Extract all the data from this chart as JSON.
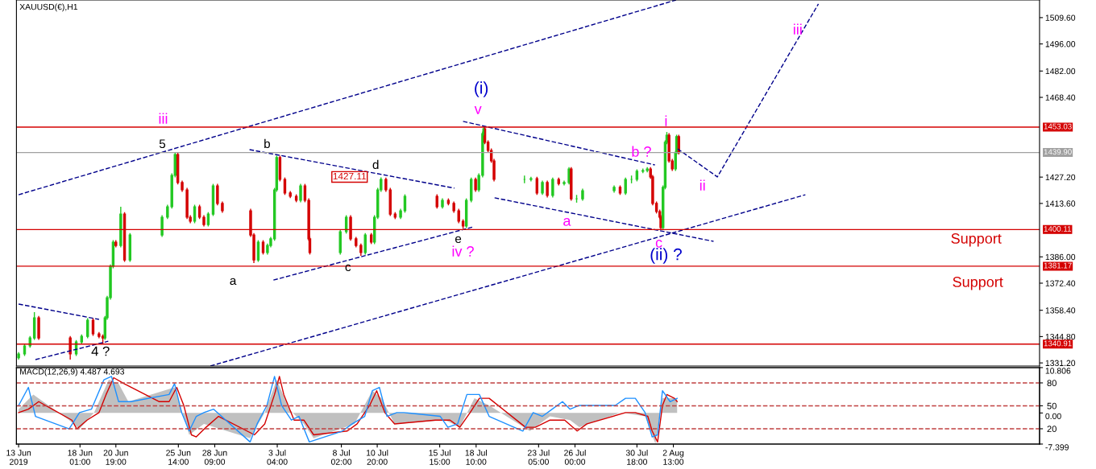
{
  "chart_data": [
    {
      "type": "candlestick",
      "title": "XAUUSD(€),H1",
      "tick_labels": "y",
      "xlim": [
        "2019-06-13T04:00",
        "2019-08-30T15:00"
      ],
      "ylim": [
        1329.6,
        1518.7
      ],
      "yticks": [
        {
          "value": 1331.2,
          "label": "1331.20"
        },
        {
          "value": 1344.8,
          "label": "1344.80"
        },
        {
          "value": 1358.4,
          "label": "1358.40"
        },
        {
          "value": 1372.4,
          "label": "1372.40"
        },
        {
          "value": 1386.0,
          "label": "1386.00"
        },
        {
          "value": 1413.6,
          "label": "1413.60"
        },
        {
          "value": 1427.2,
          "label": "1427.20"
        },
        {
          "value": 1468.4,
          "label": "1468.40"
        },
        {
          "value": 1482.0,
          "label": "1482.00"
        },
        {
          "value": 1496.0,
          "label": "1496.00"
        },
        {
          "value": 1509.6,
          "label": "1509.60"
        }
      ],
      "x": [
        "2019-06-13T08:00",
        "2019-06-13T19:00",
        "2019-06-14T05:00",
        "2019-06-14T13:00",
        "2019-06-14T21:00",
        "2019-06-17T07:00",
        "2019-06-17T18:00",
        "2019-06-18T04:00",
        "2019-06-18T15:00",
        "2019-06-19T01:00",
        "2019-06-19T12:00",
        "2019-06-19T19:00",
        "2019-06-19T23:00",
        "2019-06-20T03:00",
        "2019-06-20T09:00",
        "2019-06-20T14:00",
        "2019-06-20T19:00",
        "2019-06-21T04:00",
        "2019-06-21T11:00",
        "2019-06-21T21:00",
        "2019-06-24T08:00",
        "2019-06-24T18:00",
        "2019-06-25T02:00",
        "2019-06-25T08:00",
        "2019-06-25T13:00",
        "2019-06-25T21:00",
        "2019-06-26T06:00",
        "2019-06-26T12:00",
        "2019-06-26T20:00",
        "2019-06-27T05:00",
        "2019-06-27T13:00",
        "2019-06-27T21:00",
        "2019-06-28T06:00",
        "2019-06-28T14:00",
        "2019-06-28T23:00",
        "2019-07-01T03:00",
        "2019-07-01T09:00",
        "2019-07-01T17:00",
        "2019-07-02T02:00",
        "2019-07-02T10:00",
        "2019-07-02T16:00",
        "2019-07-02T23:00",
        "2019-07-03T03:00",
        "2019-07-03T09:00",
        "2019-07-03T18:00",
        "2019-07-04T04:00",
        "2019-07-04T15:00",
        "2019-07-04T23:00",
        "2019-07-05T07:00",
        "2019-07-05T14:00",
        "2019-07-05T16:00",
        "2019-07-08T00:00",
        "2019-07-08T11:00",
        "2019-07-08T19:00",
        "2019-07-09T05:00",
        "2019-07-09T14:00",
        "2019-07-09T22:00",
        "2019-07-10T09:00",
        "2019-07-10T15:00",
        "2019-07-10T21:00",
        "2019-07-11T03:00",
        "2019-07-11T12:00",
        "2019-07-11T20:00",
        "2019-07-12T05:00",
        "2019-07-12T15:00",
        "2019-07-12T23:00",
        "2019-07-15T10:00",
        "2019-07-15T20:00",
        "2019-07-16T07:00",
        "2019-07-16T17:00",
        "2019-07-17T02:00",
        "2019-07-17T10:00",
        "2019-07-17T16:00",
        "2019-07-18T01:00",
        "2019-07-18T09:00",
        "2019-07-18T15:00",
        "2019-07-18T22:00",
        "2019-07-19T00:00",
        "2019-07-19T02:00",
        "2019-07-19T08:00",
        "2019-07-19T14:00",
        "2019-07-19T19:00",
        "2019-07-22T03:00",
        "2019-07-22T15:00",
        "2019-07-23T02:00",
        "2019-07-23T12:00",
        "2019-07-23T21:00",
        "2019-07-24T07:00",
        "2019-07-24T18:00",
        "2019-07-25T04:00",
        "2019-07-25T13:00",
        "2019-07-25T17:00",
        "2019-07-26T03:00",
        "2019-07-26T14:00",
        "2019-07-29T00:00",
        "2019-07-29T11:00",
        "2019-07-29T21:00",
        "2019-07-30T08:00",
        "2019-07-30T18:00",
        "2019-07-31T05:00",
        "2019-07-31T13:00",
        "2019-07-31T19:00",
        "2019-07-31T23:00",
        "2019-08-01T06:00",
        "2019-08-01T12:00",
        "2019-08-01T14:00",
        "2019-08-01T18:00",
        "2019-08-01T22:00",
        "2019-08-02T01:00",
        "2019-08-02T05:00",
        "2019-08-02T11:00",
        "2019-08-02T17:00",
        "2019-08-02T19:00",
        "2019-08-02T23:00"
      ],
      "ohlc": [
        [
          1333.9,
          1336.8,
          1332.9,
          1335.8
        ],
        [
          1335.8,
          1341.0,
          1334.8,
          1340.0
        ],
        [
          1340.0,
          1345.1,
          1339.0,
          1344.1
        ],
        [
          1344.1,
          1357.4,
          1343.1,
          1354.5
        ],
        [
          1354.5,
          1355.5,
          1343.1,
          1344.1
        ],
        [
          1344.1,
          1345.1,
          1332.9,
          1335.8
        ],
        [
          1335.8,
          1343.0,
          1334.8,
          1342.0
        ],
        [
          1342.0,
          1345.9,
          1341.0,
          1344.9
        ],
        [
          1344.9,
          1354.3,
          1343.9,
          1353.3
        ],
        [
          1353.3,
          1354.3,
          1345.2,
          1346.2
        ],
        [
          1346.2,
          1347.2,
          1343.9,
          1344.9
        ],
        [
          1344.9,
          1345.9,
          1340.9,
          1344.1
        ],
        [
          1344.1,
          1355.5,
          1343.1,
          1354.5
        ],
        [
          1354.5,
          1365.9,
          1353.5,
          1364.9
        ],
        [
          1364.9,
          1382.1,
          1363.9,
          1381.1
        ],
        [
          1381.1,
          1394.6,
          1380.1,
          1393.6
        ],
        [
          1393.6,
          1394.6,
          1390.9,
          1391.9
        ],
        [
          1391.9,
          1411.9,
          1390.9,
          1408.1
        ],
        [
          1408.1,
          1409.1,
          1383.4,
          1384.4
        ],
        [
          1384.4,
          1398.3,
          1383.4,
          1397.3
        ],
        [
          1397.3,
          1407.5,
          1396.3,
          1406.5
        ],
        [
          1406.5,
          1412.9,
          1405.5,
          1411.9
        ],
        [
          1411.9,
          1429.1,
          1410.9,
          1428.1
        ],
        [
          1428.1,
          1439.9,
          1427.1,
          1438.9
        ],
        [
          1438.9,
          1439.9,
          1423.4,
          1424.4
        ],
        [
          1424.4,
          1425.4,
          1419.6,
          1420.6
        ],
        [
          1420.6,
          1421.6,
          1405.5,
          1406.5
        ],
        [
          1406.5,
          1407.5,
          1403.4,
          1404.4
        ],
        [
          1404.4,
          1412.9,
          1403.4,
          1411.9
        ],
        [
          1411.9,
          1412.9,
          1405.5,
          1406.5
        ],
        [
          1406.5,
          1407.5,
          1401.7,
          1402.7
        ],
        [
          1402.7,
          1409.1,
          1401.7,
          1408.1
        ],
        [
          1408.1,
          1423.7,
          1407.1,
          1422.7
        ],
        [
          1422.7,
          1423.7,
          1412.6,
          1413.6
        ],
        [
          1413.6,
          1414.6,
          1408.8,
          1409.8
        ],
        [
          1409.8,
          1410.8,
          1396.3,
          1397.3
        ],
        [
          1397.3,
          1398.3,
          1382.8,
          1384.4
        ],
        [
          1384.4,
          1394.6,
          1383.4,
          1393.6
        ],
        [
          1393.6,
          1394.6,
          1387.2,
          1388.2
        ],
        [
          1388.2,
          1392.9,
          1387.2,
          1391.9
        ],
        [
          1391.9,
          1396.3,
          1390.9,
          1395.3
        ],
        [
          1395.3,
          1421.6,
          1394.3,
          1420.6
        ],
        [
          1420.6,
          1438.3,
          1419.6,
          1437.3
        ],
        [
          1437.3,
          1438.3,
          1425.0,
          1426.0
        ],
        [
          1426.0,
          1427.0,
          1418.0,
          1419.0
        ],
        [
          1419.0,
          1420.0,
          1416.3,
          1417.3
        ],
        [
          1417.3,
          1418.3,
          1414.2,
          1415.2
        ],
        [
          1415.2,
          1423.7,
          1414.2,
          1422.7
        ],
        [
          1422.7,
          1423.7,
          1414.2,
          1415.2
        ],
        [
          1415.2,
          1416.2,
          1394.3,
          1395.3
        ],
        [
          1395.3,
          1396.3,
          1387.2,
          1388.2
        ],
        [
          1388.2,
          1400.0,
          1387.2,
          1399.0
        ],
        [
          1399.0,
          1407.5,
          1398.0,
          1406.5
        ],
        [
          1406.5,
          1407.5,
          1394.3,
          1395.3
        ],
        [
          1395.3,
          1396.3,
          1390.9,
          1391.9
        ],
        [
          1391.9,
          1392.9,
          1386.5,
          1388.2
        ],
        [
          1388.2,
          1398.3,
          1387.2,
          1397.3
        ],
        [
          1397.3,
          1398.3,
          1392.6,
          1393.6
        ],
        [
          1393.6,
          1407.5,
          1392.6,
          1406.5
        ],
        [
          1406.5,
          1421.6,
          1405.5,
          1420.6
        ],
        [
          1420.6,
          1427.1,
          1419.6,
          1426.0
        ],
        [
          1426.0,
          1427.0,
          1419.6,
          1420.6
        ],
        [
          1420.6,
          1421.6,
          1407.1,
          1408.1
        ],
        [
          1408.1,
          1409.1,
          1405.5,
          1406.5
        ],
        [
          1406.5,
          1410.8,
          1405.5,
          1409.8
        ],
        [
          1409.8,
          1418.3,
          1408.8,
          1417.3
        ],
        [
          1417.3,
          1418.3,
          1410.9,
          1411.9
        ],
        [
          1411.9,
          1416.2,
          1410.9,
          1415.2
        ],
        [
          1415.2,
          1416.2,
          1412.6,
          1413.6
        ],
        [
          1413.6,
          1414.6,
          1408.8,
          1409.8
        ],
        [
          1409.8,
          1410.8,
          1403.4,
          1404.4
        ],
        [
          1404.4,
          1405.4,
          1400.5,
          1401.9
        ],
        [
          1401.9,
          1416.2,
          1400.9,
          1415.2
        ],
        [
          1415.2,
          1427.0,
          1414.2,
          1426.0
        ],
        [
          1426.0,
          1427.0,
          1419.6,
          1420.6
        ],
        [
          1420.6,
          1429.1,
          1419.6,
          1428.1
        ],
        [
          1428.1,
          1450.7,
          1427.1,
          1449.7
        ],
        [
          1449.7,
          1453.0,
          1448.7,
          1452.2
        ],
        [
          1452.2,
          1453.0,
          1444.2,
          1445.2
        ],
        [
          1445.2,
          1446.2,
          1440.0,
          1441.0
        ],
        [
          1441.0,
          1442.0,
          1434.6,
          1435.6
        ],
        [
          1435.6,
          1436.6,
          1425.0,
          1426.0
        ],
        [
          1426.0,
          1428.0,
          1424.0,
          1426.0
        ],
        [
          1426.0,
          1427.4,
          1425.0,
          1426.4
        ],
        [
          1426.4,
          1427.4,
          1418.0,
          1419.0
        ],
        [
          1419.0,
          1425.4,
          1418.0,
          1424.4
        ],
        [
          1424.4,
          1425.4,
          1416.7,
          1417.7
        ],
        [
          1417.7,
          1427.0,
          1416.7,
          1426.0
        ],
        [
          1426.0,
          1427.0,
          1422.9,
          1423.9
        ],
        [
          1423.9,
          1425.4,
          1422.9,
          1424.4
        ],
        [
          1424.4,
          1432.4,
          1423.4,
          1431.4
        ],
        [
          1431.4,
          1432.4,
          1415.0,
          1416.0
        ],
        [
          1416.0,
          1418.0,
          1414.0,
          1416.0
        ],
        [
          1416.0,
          1421.2,
          1415.0,
          1420.2
        ],
        [
          1420.2,
          1422.9,
          1419.2,
          1421.9
        ],
        [
          1421.9,
          1422.9,
          1418.0,
          1419.0
        ],
        [
          1419.0,
          1427.0,
          1418.0,
          1426.0
        ],
        [
          1426.0,
          1428.0,
          1424.0,
          1426.0
        ],
        [
          1426.0,
          1431.2,
          1425.0,
          1430.2
        ],
        [
          1430.2,
          1431.6,
          1429.2,
          1430.6
        ],
        [
          1430.6,
          1432.4,
          1429.6,
          1431.4
        ],
        [
          1431.4,
          1432.4,
          1426.3,
          1427.3
        ],
        [
          1427.3,
          1428.3,
          1412.6,
          1413.6
        ],
        [
          1413.6,
          1414.6,
          1408.4,
          1409.4
        ],
        [
          1409.4,
          1410.4,
          1405.5,
          1406.5
        ],
        [
          1406.5,
          1407.5,
          1400.1,
          1401.1
        ],
        [
          1401.1,
          1422.9,
          1400.1,
          1421.9
        ],
        [
          1421.9,
          1446.2,
          1420.9,
          1445.2
        ],
        [
          1445.2,
          1450.5,
          1444.2,
          1448.9
        ],
        [
          1448.9,
          1449.9,
          1434.6,
          1435.6
        ],
        [
          1435.6,
          1436.6,
          1430.4,
          1431.4
        ],
        [
          1431.4,
          1440.7,
          1430.4,
          1439.7
        ],
        [
          1439.7,
          1449.1,
          1438.7,
          1448.1
        ],
        [
          1448.1,
          1449.1,
          1438.9,
          1439.9
        ]
      ],
      "colors": [
        "#22c822",
        "#22c822",
        "#22c822",
        "#22c822",
        "#d40000",
        "#d40000",
        "#22c822",
        "#22c822",
        "#22c822",
        "#d40000",
        "#d40000",
        "#d40000",
        "#22c822",
        "#22c822",
        "#22c822",
        "#22c822",
        "#d40000",
        "#22c822",
        "#d40000",
        "#22c822",
        "#22c822",
        "#22c822",
        "#22c822",
        "#22c822",
        "#d40000",
        "#d40000",
        "#d40000",
        "#d40000",
        "#22c822",
        "#d40000",
        "#d40000",
        "#22c822",
        "#22c822",
        "#d40000",
        "#d40000",
        "#d40000",
        "#d40000",
        "#22c822",
        "#d40000",
        "#22c822",
        "#22c822",
        "#22c822",
        "#22c822",
        "#d40000",
        "#d40000",
        "#d40000",
        "#d40000",
        "#22c822",
        "#d40000",
        "#d40000",
        "#d40000",
        "#22c822",
        "#22c822",
        "#d40000",
        "#d40000",
        "#d40000",
        "#22c822",
        "#d40000",
        "#22c822",
        "#22c822",
        "#22c822",
        "#d40000",
        "#d40000",
        "#d40000",
        "#22c822",
        "#22c822",
        "#d40000",
        "#22c822",
        "#d40000",
        "#d40000",
        "#d40000",
        "#d40000",
        "#22c822",
        "#22c822",
        "#d40000",
        "#22c822",
        "#22c822",
        "#22c822",
        "#d40000",
        "#d40000",
        "#d40000",
        "#d40000",
        "#22c822",
        "#22c822",
        "#d40000",
        "#22c822",
        "#d40000",
        "#22c822",
        "#d40000",
        "#22c822",
        "#22c822",
        "#d40000",
        "#22c822",
        "#22c822",
        "#22c822",
        "#d40000",
        "#22c822",
        "#22c822",
        "#22c822",
        "#22c822",
        "#22c822",
        "#d40000",
        "#d40000",
        "#d40000",
        "#d40000",
        "#d40000",
        "#22c822",
        "#22c822",
        "#22c822",
        "#d40000",
        "#d40000",
        "#22c822",
        "#22c822",
        "#d40000"
      ],
      "series": [
        {
          "type": "line",
          "x": [
            "2019-06-13T08:00",
            "2019-08-02T18:00"
          ],
          "values": [
            1418.1,
            1518.7
          ],
          "color": "#00008b",
          "line_style": "dashed"
        },
        {
          "type": "line",
          "x": [
            "2019-06-28T01:00",
            "2019-08-12T16:00"
          ],
          "values": [
            1329.6,
            1418.1
          ],
          "color": "#00008b",
          "line_style": "dashed"
        },
        {
          "type": "line",
          "x": [
            "2019-06-13T08:00",
            "2019-06-19T12:00"
          ],
          "values": [
            1361.6,
            1353.7
          ],
          "color": "#00008b",
          "line_style": "dashed"
        },
        {
          "type": "line",
          "x": [
            "2019-06-14T15:00",
            "2019-06-20T05:00"
          ],
          "values": [
            1332.9,
            1342.4
          ],
          "color": "#00008b",
          "line_style": "dashed"
        },
        {
          "type": "line",
          "x": [
            "2019-07-01T01:00",
            "2019-07-16T18:00"
          ],
          "values": [
            1441.4,
            1421.5
          ],
          "color": "#00008b",
          "line_style": "dashed"
        },
        {
          "type": "line",
          "x": [
            "2019-07-02T21:00",
            "2019-07-18T05:00"
          ],
          "values": [
            1374.0,
            1401.5
          ],
          "color": "#00008b",
          "line_style": "dashed"
        },
        {
          "type": "line",
          "x": [
            "2019-07-17T10:00",
            "2019-08-01T03:00"
          ],
          "values": [
            1456.0,
            1433.5
          ],
          "color": "#00008b",
          "line_style": "dashed"
        },
        {
          "type": "line",
          "x": [
            "2019-07-19T20:00",
            "2019-08-05T15:00"
          ],
          "values": [
            1416.5,
            1394.0
          ],
          "color": "#00008b",
          "line_style": "dashed"
        },
        {
          "type": "line",
          "x": [
            "2019-08-02T21:00",
            "2019-08-05T22:00",
            "2019-08-13T16:00"
          ],
          "values": [
            1441.8,
            1427.3,
            1516.7
          ],
          "color": "#00008b",
          "line_style": "dashed"
        }
      ],
      "ref_lines": [
        {
          "axis": "y",
          "value": 1453.03,
          "label": "1453.03",
          "color": "#d40000",
          "line_style": "solid"
        },
        {
          "axis": "y",
          "value": 1439.9,
          "label": "1439.90",
          "color": "#a0a0a0",
          "line_style": "solid"
        },
        {
          "axis": "y",
          "value": 1400.11,
          "label": "1400.11",
          "color": "#d40000",
          "line_style": "solid"
        },
        {
          "axis": "y",
          "value": 1381.17,
          "label": "1381.17",
          "color": "#d40000",
          "line_style": "solid"
        },
        {
          "axis": "y",
          "value": 1340.91,
          "label": "1340.91",
          "color": "#d40000",
          "line_style": "solid"
        }
      ],
      "annotations": [
        "iii",
        "5",
        "b",
        "d",
        "1427.11",
        "a",
        "c",
        "e",
        "iv ?",
        "4 ?",
        "(i)",
        "v",
        "i",
        "b ?",
        "a",
        "c",
        "(ii) ?",
        "ii",
        "iii",
        "Support",
        "Support"
      ]
    },
    {
      "type": "line",
      "title": "MACD(12,26,9) 4.487 4.693",
      "xlim": [
        "2019-06-13T04:00",
        "2019-08-30T15:00"
      ],
      "ylim": [
        -7.399,
        10.806
      ],
      "xticks": [
        {
          "value": "2019-06-13T08:00",
          "label": "13 Jun 2019"
        },
        {
          "value": "2019-06-18T01:00",
          "label": "18 Jun 01:00"
        },
        {
          "value": "2019-06-20T19:00",
          "label": "20 Jun 19:00"
        },
        {
          "value": "2019-06-25T14:00",
          "label": "25 Jun 14:00"
        },
        {
          "value": "2019-06-28T09:00",
          "label": "28 Jun 09:00"
        },
        {
          "value": "2019-07-03T04:00",
          "label": "3 Jul 04:00"
        },
        {
          "value": "2019-07-08T02:00",
          "label": "8 Jul 02:00"
        },
        {
          "value": "2019-07-10T20:00",
          "label": "10 Jul 20:00"
        },
        {
          "value": "2019-07-15T15:00",
          "label": "15 Jul 15:00"
        },
        {
          "value": "2019-07-18T10:00",
          "label": "18 Jul 10:00"
        },
        {
          "value": "2019-07-23T05:00",
          "label": "23 Jul 05:00"
        },
        {
          "value": "2019-07-26T00:00",
          "label": "26 Jul 00:00"
        },
        {
          "value": "2019-07-30T18:00",
          "label": "30 Jul 18:00"
        },
        {
          "value": "2019-08-02T13:00",
          "label": "2 Aug 13:00"
        }
      ],
      "yticks": [
        {
          "value": 10.806,
          "label": "10.806"
        },
        {
          "value": 0,
          "label": "0.00"
        },
        {
          "value": -7.399,
          "label": "-7.399"
        }
      ],
      "y2lim": [
        0,
        100
      ],
      "y2ticks": [
        80,
        50,
        20
      ],
      "series": [
        {
          "type": "area",
          "color": "#c0c0c0",
          "x": [
            "2019-06-13T08:00",
            "2019-06-14T11:00",
            "2019-06-17T05:00",
            "2019-06-18T00:00",
            "2019-06-19T03:00",
            "2019-06-20T06:00",
            "2019-06-21T00:00",
            "2019-06-21T18:00",
            "2019-06-25T07:00",
            "2019-06-26T10:00",
            "2019-06-27T13:00",
            "2019-07-01T02:00",
            "2019-07-02T05:00",
            "2019-07-03T03:00",
            "2019-07-04T02:00",
            "2019-07-05T05:00",
            "2019-07-05T23:00",
            "2019-07-09T02:00",
            "2019-07-10T11:00",
            "2019-07-11T04:00",
            "2019-07-12T04:00",
            "2019-07-16T01:00",
            "2019-07-17T04:00",
            "2019-07-18T07:00",
            "2019-07-19T10:00",
            "2019-07-22T13:00",
            "2019-07-24T02:00",
            "2019-07-25T15:00",
            "2019-07-26T08:00",
            "2019-07-29T12:00",
            "2019-07-31T09:00",
            "2019-08-01T04:00",
            "2019-08-01T17:00",
            "2019-08-02T20:00"
          ],
          "values": [
            0.9,
            4.4,
            -1.7,
            -3.8,
            0.1,
            7.9,
            7.0,
            2.7,
            6.1,
            -5.2,
            -2.6,
            -6.0,
            0.1,
            7.9,
            0.9,
            -2.6,
            -6.0,
            -2.6,
            5.3,
            3.5,
            -2.6,
            -1.7,
            -3.4,
            3.5,
            1.8,
            -4.3,
            -0.8,
            -1.7,
            -3.4,
            0.1,
            -0.8,
            -7.3,
            3.5,
            3.5
          ]
        },
        {
          "type": "line",
          "color": "#d40000",
          "x": [
            "2019-06-13T08:00",
            "2019-06-14T02:00",
            "2019-06-14T21:00",
            "2019-06-17T10:00",
            "2019-06-17T19:00",
            "2019-06-18T14:00",
            "2019-06-19T12:00",
            "2019-06-20T01:00",
            "2019-06-20T15:00",
            "2019-06-21T10:00",
            "2019-06-24T03:00",
            "2019-06-24T21:00",
            "2019-06-25T11:00",
            "2019-06-26T00:00",
            "2019-06-26T14:00",
            "2019-06-26T23:00",
            "2019-06-27T17:00",
            "2019-06-28T16:00",
            "2019-07-01T10:00",
            "2019-07-02T05:00",
            "2019-07-02T23:00",
            "2019-07-03T08:00",
            "2019-07-03T16:00",
            "2019-07-04T11:00",
            "2019-07-05T05:00",
            "2019-07-05T23:00",
            "2019-07-08T13:00",
            "2019-07-09T07:00",
            "2019-07-10T06:00",
            "2019-07-10T19:00",
            "2019-07-11T10:00",
            "2019-07-12T04:00",
            "2019-07-15T07:00",
            "2019-07-16T10:00",
            "2019-07-17T04:00",
            "2019-07-17T23:00",
            "2019-07-18T16:00",
            "2019-07-19T10:00",
            "2019-07-22T05:00",
            "2019-07-22T23:00",
            "2019-07-24T02:00",
            "2019-07-25T05:00",
            "2019-07-26T04:00",
            "2019-07-26T22:00",
            "2019-07-29T21:00",
            "2019-07-30T15:00",
            "2019-07-31T14:00",
            "2019-07-31T22:00",
            "2019-08-01T08:00",
            "2019-08-01T17:00",
            "2019-08-02T01:00",
            "2019-08-02T15:00",
            "2019-08-02T20:00"
          ],
          "values": [
            0.1,
            0.9,
            2.7,
            -1.7,
            -3.8,
            -1.7,
            0.1,
            4.4,
            8.4,
            7.0,
            2.7,
            2.7,
            6.1,
            1.8,
            -5.2,
            -5.7,
            -3.4,
            -0.8,
            -5.2,
            -2.6,
            4.4,
            8.7,
            4.4,
            -1.7,
            -1.7,
            -5.2,
            -4.3,
            -2.6,
            1.8,
            5.3,
            0.1,
            -2.6,
            -1.7,
            -1.7,
            -3.4,
            0.1,
            3.5,
            3.5,
            -3.4,
            -3.4,
            -1.7,
            -1.7,
            -4.3,
            -2.6,
            0.1,
            0.1,
            -0.8,
            -4.3,
            -6.9,
            1.8,
            4.4,
            3.5,
            2.7
          ]
        },
        {
          "type": "line",
          "color": "#1e90ff",
          "x": [
            "2019-06-13T08:00",
            "2019-06-14T02:00",
            "2019-06-14T15:00",
            "2019-06-17T05:00",
            "2019-06-18T00:00",
            "2019-06-18T22:00",
            "2019-06-19T21:00",
            "2019-06-20T11:00",
            "2019-06-21T00:00",
            "2019-06-21T23:00",
            "2019-06-24T21:00",
            "2019-06-25T07:00",
            "2019-06-25T20:00",
            "2019-06-26T10:00",
            "2019-06-26T23:00",
            "2019-06-27T13:00",
            "2019-06-28T07:00",
            "2019-07-01T02:00",
            "2019-07-01T15:00",
            "2019-07-02T09:00",
            "2019-07-02T23:00",
            "2019-07-03T12:00",
            "2019-07-04T06:00",
            "2019-07-04T20:00",
            "2019-07-05T15:00",
            "2019-07-08T04:00",
            "2019-07-08T22:00",
            "2019-07-09T21:00",
            "2019-07-10T11:00",
            "2019-07-11T00:00",
            "2019-07-11T14:00",
            "2019-07-12T08:00",
            "2019-07-12T21:00",
            "2019-07-15T16:00",
            "2019-07-16T06:00",
            "2019-07-17T00:00",
            "2019-07-17T17:00",
            "2019-07-18T16:00",
            "2019-07-19T10:00",
            "2019-07-22T00:00",
            "2019-07-22T19:00",
            "2019-07-23T12:00",
            "2019-07-24T06:00",
            "2019-07-25T01:00",
            "2019-07-25T15:00",
            "2019-07-26T08:00",
            "2019-07-29T02:00",
            "2019-07-29T21:00",
            "2019-07-30T15:00",
            "2019-07-31T09:00",
            "2019-07-31T22:00",
            "2019-08-01T08:00",
            "2019-08-01T17:00",
            "2019-08-02T07:00",
            "2019-08-02T20:00"
          ],
          "values": [
            1.8,
            6.1,
            -0.8,
            -3.8,
            0.1,
            0.9,
            7.9,
            8.7,
            2.7,
            2.7,
            4.4,
            7.0,
            0.1,
            -4.3,
            -0.8,
            0.1,
            0.9,
            -6.9,
            -2.6,
            1.8,
            8.7,
            1.8,
            -1.7,
            -0.8,
            -6.9,
            -4.3,
            -2.6,
            -0.8,
            5.3,
            6.1,
            -0.8,
            0.1,
            0.1,
            -0.8,
            -3.4,
            -2.6,
            4.4,
            4.4,
            -0.8,
            -4.3,
            0.1,
            -0.8,
            0.9,
            2.7,
            0.9,
            1.8,
            1.8,
            3.5,
            3.5,
            0.1,
            -5.7,
            -5.2,
            5.3,
            2.7,
            3.5
          ]
        }
      ],
      "ref_lines": [
        {
          "axis": "y2",
          "value": 80,
          "color": "#c04040",
          "line_style": "dashed"
        },
        {
          "axis": "y2",
          "value": 50,
          "color": "#c04040",
          "line_style": "dashed"
        },
        {
          "axis": "y2",
          "value": 20,
          "color": "#c04040",
          "line_style": "dashed"
        }
      ]
    }
  ]
}
